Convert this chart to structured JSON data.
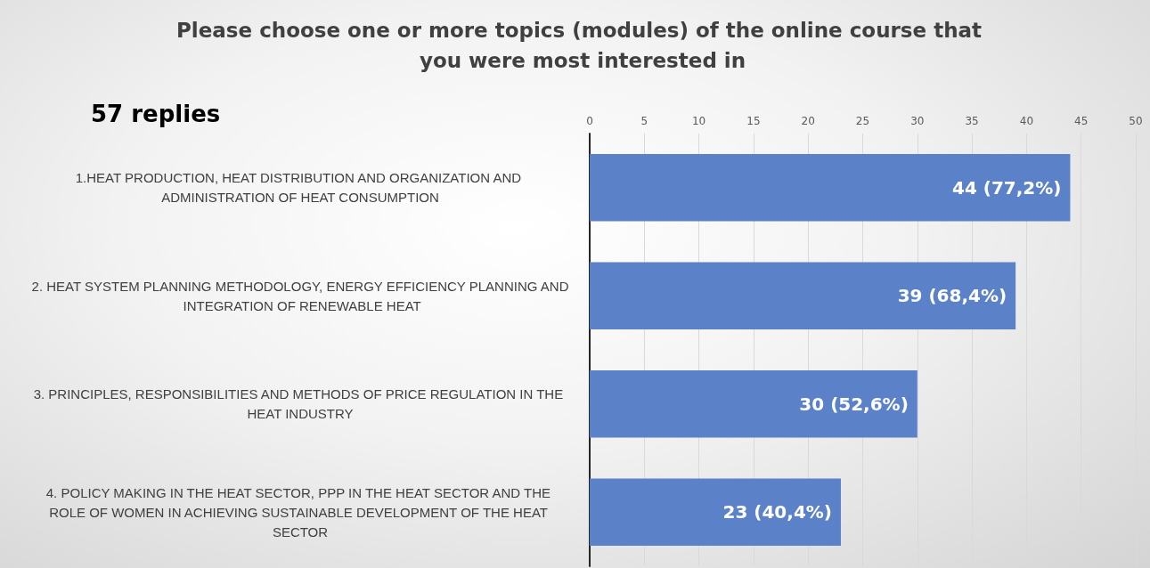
{
  "chart_data": {
    "type": "bar",
    "orientation": "horizontal",
    "title": "Please choose one or more topics (modules) of the online course that you were most interested in",
    "subtitle": "57 replies",
    "categories": [
      "1.HEAT PRODUCTION, HEAT DISTRIBUTION AND ORGANIZATION AND ADMINISTRATION OF HEAT CONSUMPTION",
      "2. HEAT SYSTEM PLANNING METHODOLOGY, ENERGY EFFICIENCY PLANNING AND INTEGRATION OF RENEWABLE HEAT",
      "3. PRINCIPLES, RESPONSIBILITIES AND METHODS OF PRICE REGULATION IN THE HEAT INDUSTRY",
      "4. POLICY MAKING IN THE HEAT SECTOR, PPP IN THE HEAT SECTOR AND THE ROLE OF WOMEN IN ACHIEVING SUSTAINABLE DEVELOPMENT OF THE HEAT SECTOR"
    ],
    "values": [
      44,
      39,
      30,
      23
    ],
    "value_labels": [
      "44 (77,2%)",
      "39 (68,4%)",
      "30 (52,6%)",
      "23 (40,4%)"
    ],
    "color": "#5b82c9",
    "xlim": [
      0,
      50
    ],
    "xticks": [
      0,
      5,
      10,
      15,
      20,
      25,
      30,
      35,
      40,
      45,
      50
    ],
    "grid": "x"
  }
}
